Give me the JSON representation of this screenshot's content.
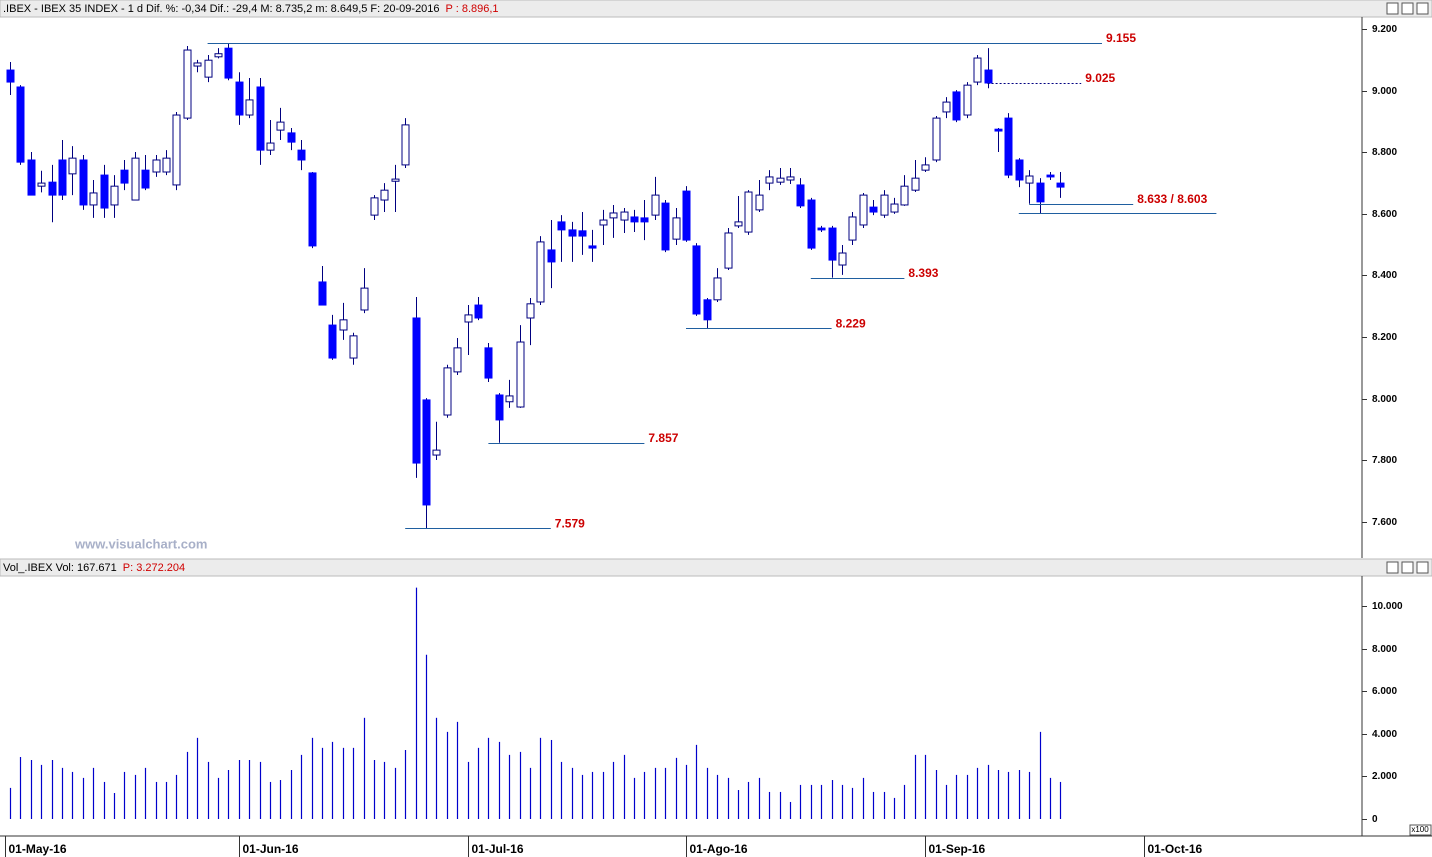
{
  "watermark": "www.visualchart.com",
  "chart_data": [
    {
      "type": "candlestick",
      "title": ".IBEX - IBEX 35 INDEX - 1 d Dif. %: -0,34 Dif.: -29,4 M: 8.735,2 m: 8.649,5 F: 20-09-2016",
      "subtitle": "P : 8.896,1",
      "color": "#0000ff",
      "x": [
        0,
        1,
        2,
        3,
        4,
        5,
        6,
        7,
        8,
        9,
        10,
        11,
        12,
        13,
        14,
        15,
        16,
        17,
        18,
        19,
        20,
        21,
        22,
        23,
        24,
        25,
        26,
        27,
        28,
        29,
        30,
        31,
        32,
        33,
        34,
        35,
        36,
        37,
        38,
        39,
        40,
        41,
        42,
        43,
        44,
        45,
        46,
        47,
        48,
        49,
        50,
        51,
        52,
        53,
        54,
        55,
        56,
        57,
        58,
        59,
        60,
        61,
        62,
        63,
        64,
        65,
        66,
        67,
        68,
        69,
        70,
        71,
        72,
        73,
        74,
        75,
        76,
        77,
        78,
        79,
        80,
        81,
        82,
        83,
        84,
        85,
        86,
        87,
        88,
        89,
        90,
        91,
        92,
        93,
        94,
        95,
        96,
        97,
        98,
        99,
        100,
        101
      ],
      "open": [
        9067,
        9012,
        8775,
        8690,
        8703,
        8775,
        8730,
        8775,
        8629,
        8726,
        8629,
        8742,
        8645,
        8742,
        8736,
        8736,
        8694,
        8911,
        9080,
        9044,
        9110,
        9138,
        9028,
        8921,
        9012,
        8807,
        8872,
        8863,
        8807,
        8733,
        8379,
        8239,
        8223,
        8132,
        8288,
        8596,
        8645,
        8706,
        8759,
        8262,
        7996,
        7817,
        7947,
        8087,
        8249,
        8304,
        8165,
        8012,
        7990,
        7973,
        8262,
        8314,
        8483,
        8574,
        8548,
        8545,
        8496,
        8564,
        8587,
        8580,
        8590,
        8587,
        8596,
        8635,
        8518,
        8674,
        8496,
        8321,
        8321,
        8424,
        8561,
        8541,
        8613,
        8700,
        8703,
        8710,
        8694,
        8645,
        8554,
        8554,
        8434,
        8515,
        8564,
        8622,
        8596,
        8606,
        8629,
        8677,
        8742,
        8775,
        8931,
        8996,
        8921,
        9028,
        9067,
        8875,
        8911,
        8775,
        8700,
        8700,
        8726,
        8700
      ],
      "high": [
        9093,
        9018,
        8801,
        8740,
        8759,
        8840,
        8820,
        8791,
        8710,
        8759,
        8726,
        8775,
        8801,
        8791,
        8791,
        8807,
        8931,
        9145,
        9100,
        9116,
        9138,
        9155,
        9060,
        9041,
        9041,
        8905,
        8944,
        8879,
        8840,
        8736,
        8431,
        8272,
        8311,
        8214,
        8424,
        8661,
        8700,
        8759,
        8911,
        8330,
        8002,
        7925,
        8110,
        8197,
        8304,
        8330,
        8181,
        8018,
        8061,
        8239,
        8327,
        8528,
        8580,
        8596,
        8574,
        8606,
        8548,
        8613,
        8629,
        8619,
        8613,
        8645,
        8720,
        8645,
        8619,
        8690,
        8505,
        8327,
        8424,
        8554,
        8658,
        8677,
        8710,
        8742,
        8749,
        8749,
        8716,
        8652,
        8561,
        8561,
        8499,
        8606,
        8668,
        8645,
        8677,
        8652,
        8726,
        8775,
        8784,
        8918,
        8979,
        9002,
        9028,
        9116,
        9138,
        8879,
        8927,
        8781,
        8742,
        8716,
        8736,
        8736
      ],
      "low": [
        8986,
        8759,
        8661,
        8670,
        8573,
        8645,
        8661,
        8613,
        8587,
        8587,
        8587,
        8677,
        8645,
        8677,
        8720,
        8726,
        8677,
        8905,
        9060,
        9028,
        9105,
        9034,
        8889,
        8911,
        8759,
        8791,
        8840,
        8807,
        8742,
        8489,
        8304,
        8126,
        8191,
        8110,
        8278,
        8580,
        8606,
        8606,
        8749,
        7743,
        7579,
        7801,
        7938,
        8077,
        8142,
        8255,
        8054,
        7857,
        7970,
        7970,
        8174,
        8304,
        8359,
        8444,
        8444,
        8467,
        8444,
        8499,
        8522,
        8538,
        8541,
        8515,
        8580,
        8476,
        8499,
        8509,
        8269,
        8229,
        8314,
        8418,
        8554,
        8532,
        8606,
        8677,
        8694,
        8697,
        8619,
        8483,
        8541,
        8393,
        8402,
        8499,
        8554,
        8596,
        8587,
        8600,
        8626,
        8671,
        8736,
        8768,
        8911,
        8898,
        8911,
        9018,
        9008,
        8801,
        8716,
        8687,
        8633,
        8603,
        8710,
        8652
      ],
      "close": [
        9028,
        8768,
        8661,
        8700,
        8661,
        8661,
        8781,
        8629,
        8668,
        8619,
        8690,
        8700,
        8781,
        8684,
        8775,
        8781,
        8921,
        9132,
        9090,
        9099,
        9120,
        9041,
        8921,
        8970,
        8807,
        8830,
        8898,
        8833,
        8775,
        8496,
        8304,
        8132,
        8256,
        8204,
        8359,
        8652,
        8677,
        8713,
        8889,
        7791,
        7655,
        7833,
        8100,
        8165,
        8272,
        8262,
        8067,
        7931,
        8009,
        8184,
        8308,
        8509,
        8444,
        8548,
        8528,
        8528,
        8489,
        8580,
        8603,
        8606,
        8574,
        8574,
        8661,
        8483,
        8587,
        8515,
        8275,
        8256,
        8392,
        8538,
        8574,
        8671,
        8661,
        8720,
        8716,
        8720,
        8626,
        8489,
        8548,
        8450,
        8473,
        8590,
        8661,
        8606,
        8661,
        8632,
        8690,
        8716,
        8759,
        8911,
        8963,
        8905,
        9018,
        9106,
        9025,
        8869,
        8726,
        8710,
        8723,
        8639,
        8720,
        8687
      ],
      "xlim": [
        -0.96,
        130
      ],
      "xticks": [
        {
          "value": -0.5,
          "label": "01-May-16"
        },
        {
          "value": 22,
          "label": "01-Jun-16"
        },
        {
          "value": 44,
          "label": "01-Jul-16"
        },
        {
          "value": 65,
          "label": "01-Ago-16"
        },
        {
          "value": 88,
          "label": "01-Sep-16"
        },
        {
          "value": 109,
          "label": "01-Oct-16"
        }
      ],
      "ylim": [
        7486,
        9236
      ],
      "yticks": [
        {
          "value": 9200,
          "label": "9.200"
        },
        {
          "value": 9000,
          "label": "9.000"
        },
        {
          "value": 8800,
          "label": "8.800"
        },
        {
          "value": 8600,
          "label": "8.600"
        },
        {
          "value": 8400,
          "label": "8.400"
        },
        {
          "value": 8200,
          "label": "8.200"
        },
        {
          "value": 8000,
          "label": "8.000"
        },
        {
          "value": 7800,
          "label": "7.800"
        },
        {
          "value": 7600,
          "label": "7.600"
        }
      ],
      "annotations": [
        {
          "label": "9.155",
          "lines": [
            {
              "value": 9155,
              "x": [
                19,
                105
              ],
              "style": "solid"
            }
          ]
        },
        {
          "label": "9.025",
          "lines": [
            {
              "value": 9025,
              "x": [
                94,
                103
              ],
              "style": "dotted"
            }
          ]
        },
        {
          "label": "8.633 / 8.603",
          "lines": [
            {
              "value": 8633,
              "x": [
                98,
                108
              ],
              "style": "solid"
            },
            {
              "value": 8603,
              "x": [
                97,
                116
              ],
              "style": "solid"
            }
          ]
        },
        {
          "label": "8.393",
          "lines": [
            {
              "value": 8393,
              "x": [
                77,
                86
              ],
              "style": "solid"
            }
          ]
        },
        {
          "label": "8.229",
          "lines": [
            {
              "value": 8229,
              "x": [
                65,
                79
              ],
              "style": "solid"
            }
          ]
        },
        {
          "label": "7.857",
          "lines": [
            {
              "value": 7857,
              "x": [
                46,
                61
              ],
              "style": "solid"
            }
          ]
        },
        {
          "label": "7.579",
          "lines": [
            {
              "value": 7579,
              "x": [
                38,
                52
              ],
              "style": "solid"
            }
          ]
        }
      ]
    },
    {
      "type": "volume",
      "title": "Vol_.IBEX Vol: 167.671",
      "subtitle": "P: 3.272.204",
      "unit": "x100",
      "color": "#0000cc",
      "values": [
        1460,
        2910,
        2770,
        2540,
        2770,
        2400,
        2210,
        1930,
        2400,
        1740,
        1220,
        2210,
        2070,
        2400,
        1740,
        1740,
        2070,
        3150,
        3810,
        2680,
        1930,
        2300,
        2770,
        2770,
        2680,
        1740,
        1830,
        2300,
        3010,
        3810,
        3340,
        3620,
        3340,
        3340,
        4750,
        2770,
        2680,
        2400,
        3240,
        10860,
        7710,
        4750,
        4090,
        4560,
        2680,
        3340,
        3810,
        3620,
        3010,
        3150,
        2400,
        3810,
        3710,
        2680,
        2400,
        2070,
        2210,
        2210,
        2680,
        3010,
        1930,
        2210,
        2400,
        2400,
        2870,
        2540,
        3480,
        2400,
        2070,
        1930,
        1360,
        1740,
        1930,
        1270,
        1270,
        800,
        1600,
        1600,
        1600,
        1830,
        1600,
        1460,
        1930,
        1270,
        1270,
        990,
        1600,
        3010,
        3010,
        2300,
        1600,
        2070,
        2070,
        2400,
        2540,
        2300,
        2210,
        2300,
        2210,
        4090,
        1930,
        1740
      ],
      "ylim": [
        -798,
        11408
      ],
      "yticks": [
        {
          "value": 10000,
          "label": "10.000"
        },
        {
          "value": 8000,
          "label": "8.000"
        },
        {
          "value": 6000,
          "label": "6.000"
        },
        {
          "value": 4000,
          "label": "4.000"
        },
        {
          "value": 2000,
          "label": "2.000"
        },
        0
      ]
    }
  ]
}
